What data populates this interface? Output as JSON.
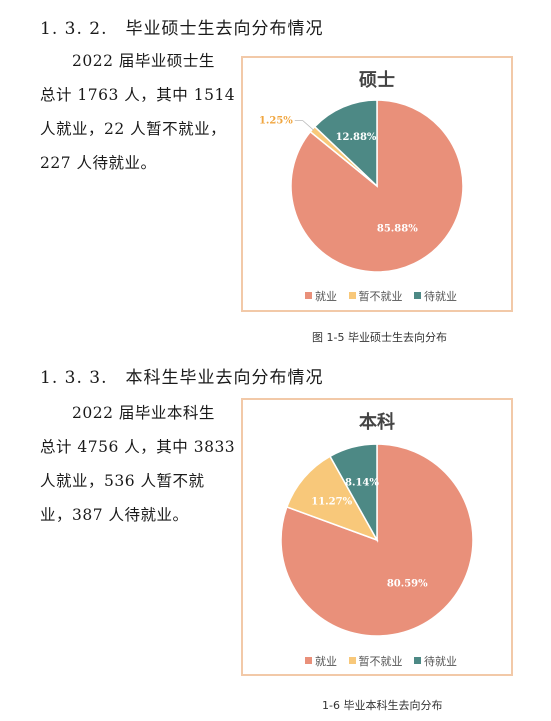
{
  "section_1": {
    "number": "1. 3. 2.",
    "title": "毕业硕士生去向分布情况",
    "lines": [
      "2022 届毕业硕士生",
      "总计 1763 人，其中 1514",
      "人就业，22 人暂不就业，",
      "227 人待就业。"
    ],
    "caption": "图 1-5  毕业硕士生去向分布"
  },
  "section_2": {
    "number": "1. 3. 3.",
    "title": "本科生毕业去向分布情况",
    "lines": [
      "2022 届毕业本科生",
      "总计 4756 人，其中 3833",
      "人就业，536 人暂不就",
      "业，387 人待就业。"
    ],
    "caption": "1-6  毕业本科生去向分布"
  },
  "colors": {
    "employed": "#e9907a",
    "not_yet": "#f8c87a",
    "pending": "#4d8985",
    "frame": "#f2c9a8"
  },
  "chart_data": [
    {
      "type": "pie",
      "title": "硕士",
      "categories": [
        "就业",
        "暂不就业",
        "待就业"
      ],
      "values": [
        85.88,
        1.25,
        12.88
      ],
      "labels": [
        "85.88%",
        "1.25%",
        "12.88%"
      ],
      "legend": "bottom"
    },
    {
      "type": "pie",
      "title": "本科",
      "categories": [
        "就业",
        "暂不就业",
        "待就业"
      ],
      "values": [
        80.59,
        11.27,
        8.14
      ],
      "labels": [
        "80.59%",
        "11.27%",
        "8.14%"
      ],
      "legend": "bottom"
    }
  ]
}
